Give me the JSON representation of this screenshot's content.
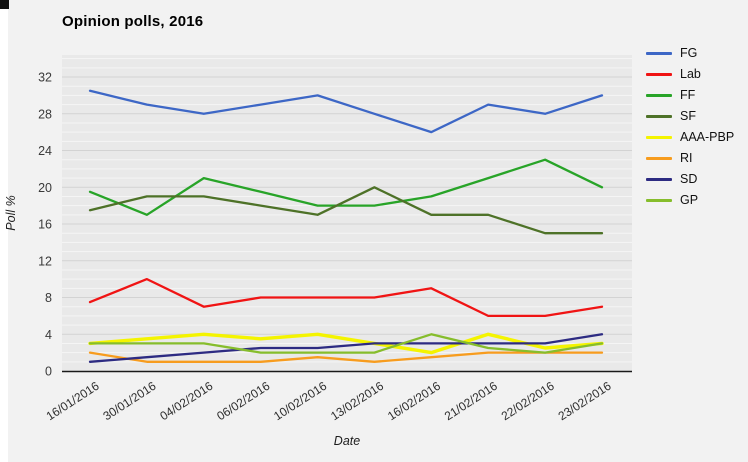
{
  "chart_data": {
    "type": "line",
    "title": "Opinion polls, 2016",
    "xlabel": "Date",
    "ylabel": "Poll %",
    "categories": [
      "16/01/2016",
      "30/01/2016",
      "04/02/2016",
      "06/02/2016",
      "10/02/2016",
      "13/02/2016",
      "16/02/2016",
      "21/02/2016",
      "22/02/2016",
      "23/02/2016"
    ],
    "yticks": [
      0,
      4,
      8,
      12,
      16,
      20,
      24,
      28,
      32
    ],
    "ylim": [
      0,
      34.4
    ],
    "grid": "horizontal gridlines: minor every 1, major every 4",
    "legend_position": "right",
    "series": [
      {
        "name": "FG",
        "color": "#3d67c6",
        "values": [
          30.5,
          29,
          28,
          29,
          30,
          28,
          26,
          29,
          28,
          30
        ]
      },
      {
        "name": "Lab",
        "color": "#f01414",
        "values": [
          7.5,
          10,
          7,
          8,
          8,
          8,
          9,
          6,
          6,
          7
        ]
      },
      {
        "name": "FF",
        "color": "#28a428",
        "values": [
          19.5,
          17,
          21,
          19.5,
          18,
          18,
          19,
          21,
          23,
          20
        ]
      },
      {
        "name": "SF",
        "color": "#4e7228",
        "values": [
          17.5,
          19,
          19,
          18,
          17,
          20,
          17,
          17,
          15,
          15
        ]
      },
      {
        "name": "AAA-PBP",
        "color": "#f4f400",
        "values": [
          3,
          3.5,
          4,
          3.5,
          4,
          3,
          2,
          4,
          2.5,
          3
        ]
      },
      {
        "name": "RI",
        "color": "#f79c1e",
        "values": [
          2,
          1,
          1,
          1,
          1.5,
          1,
          1.5,
          2,
          2,
          2
        ]
      },
      {
        "name": "SD",
        "color": "#2d2b82",
        "values": [
          1,
          1.5,
          2,
          2.5,
          2.5,
          3,
          3,
          3,
          3,
          4
        ]
      },
      {
        "name": "GP",
        "color": "#86bd2c",
        "values": [
          3,
          3,
          3,
          2,
          2,
          2,
          4,
          2.5,
          2,
          3
        ]
      }
    ]
  }
}
